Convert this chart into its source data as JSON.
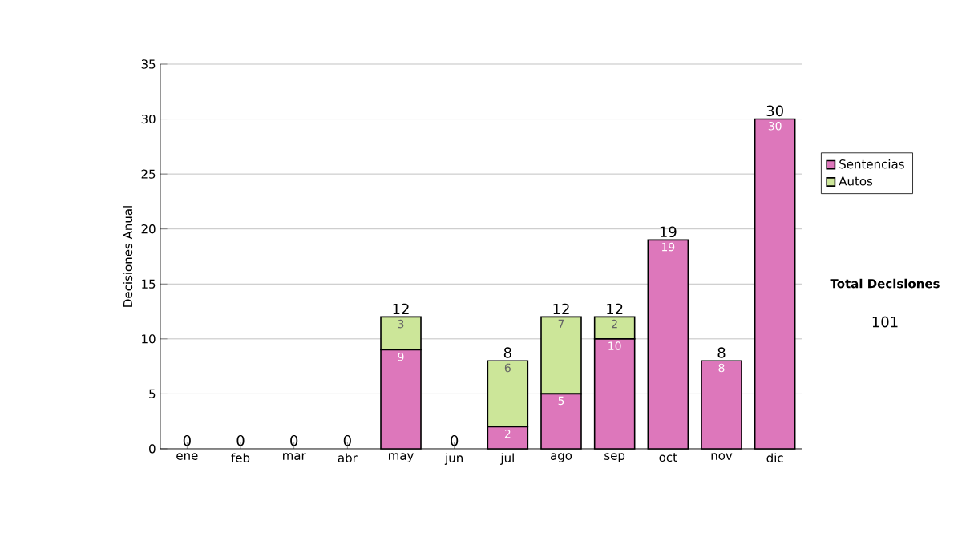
{
  "chart_data": {
    "type": "bar",
    "stacked": true,
    "ylabel": "Decisiones Anual",
    "categories": [
      "ene",
      "feb",
      "mar",
      "abr",
      "may",
      "jun",
      "jul",
      "ago",
      "sep",
      "oct",
      "nov",
      "dic"
    ],
    "series": [
      {
        "name": "Sentencias",
        "color": "#dd77bb",
        "values": [
          0,
          0,
          0,
          0,
          9,
          0,
          2,
          5,
          10,
          19,
          8,
          30
        ],
        "value_labels": [
          null,
          null,
          null,
          null,
          "9",
          null,
          "2",
          "5",
          "10",
          "19",
          "8",
          "30"
        ]
      },
      {
        "name": "Autos",
        "color": "#cce699",
        "values": [
          0,
          0,
          0,
          0,
          3,
          0,
          6,
          7,
          2,
          0,
          0,
          0
        ],
        "value_labels": [
          null,
          null,
          null,
          null,
          "3",
          null,
          "6",
          "7",
          "2",
          null,
          null,
          null
        ]
      }
    ],
    "totals": [
      "0",
      "0",
      "0",
      "0",
      "12",
      "0",
      "8",
      "12",
      "12",
      "19",
      "8",
      "30"
    ],
    "ylim": [
      0,
      35
    ],
    "yticks": [
      0,
      5,
      10,
      15,
      20,
      25,
      30,
      35
    ],
    "grid": "y",
    "legend": "right",
    "annotations": [
      "Total Decisiones",
      "101"
    ]
  }
}
